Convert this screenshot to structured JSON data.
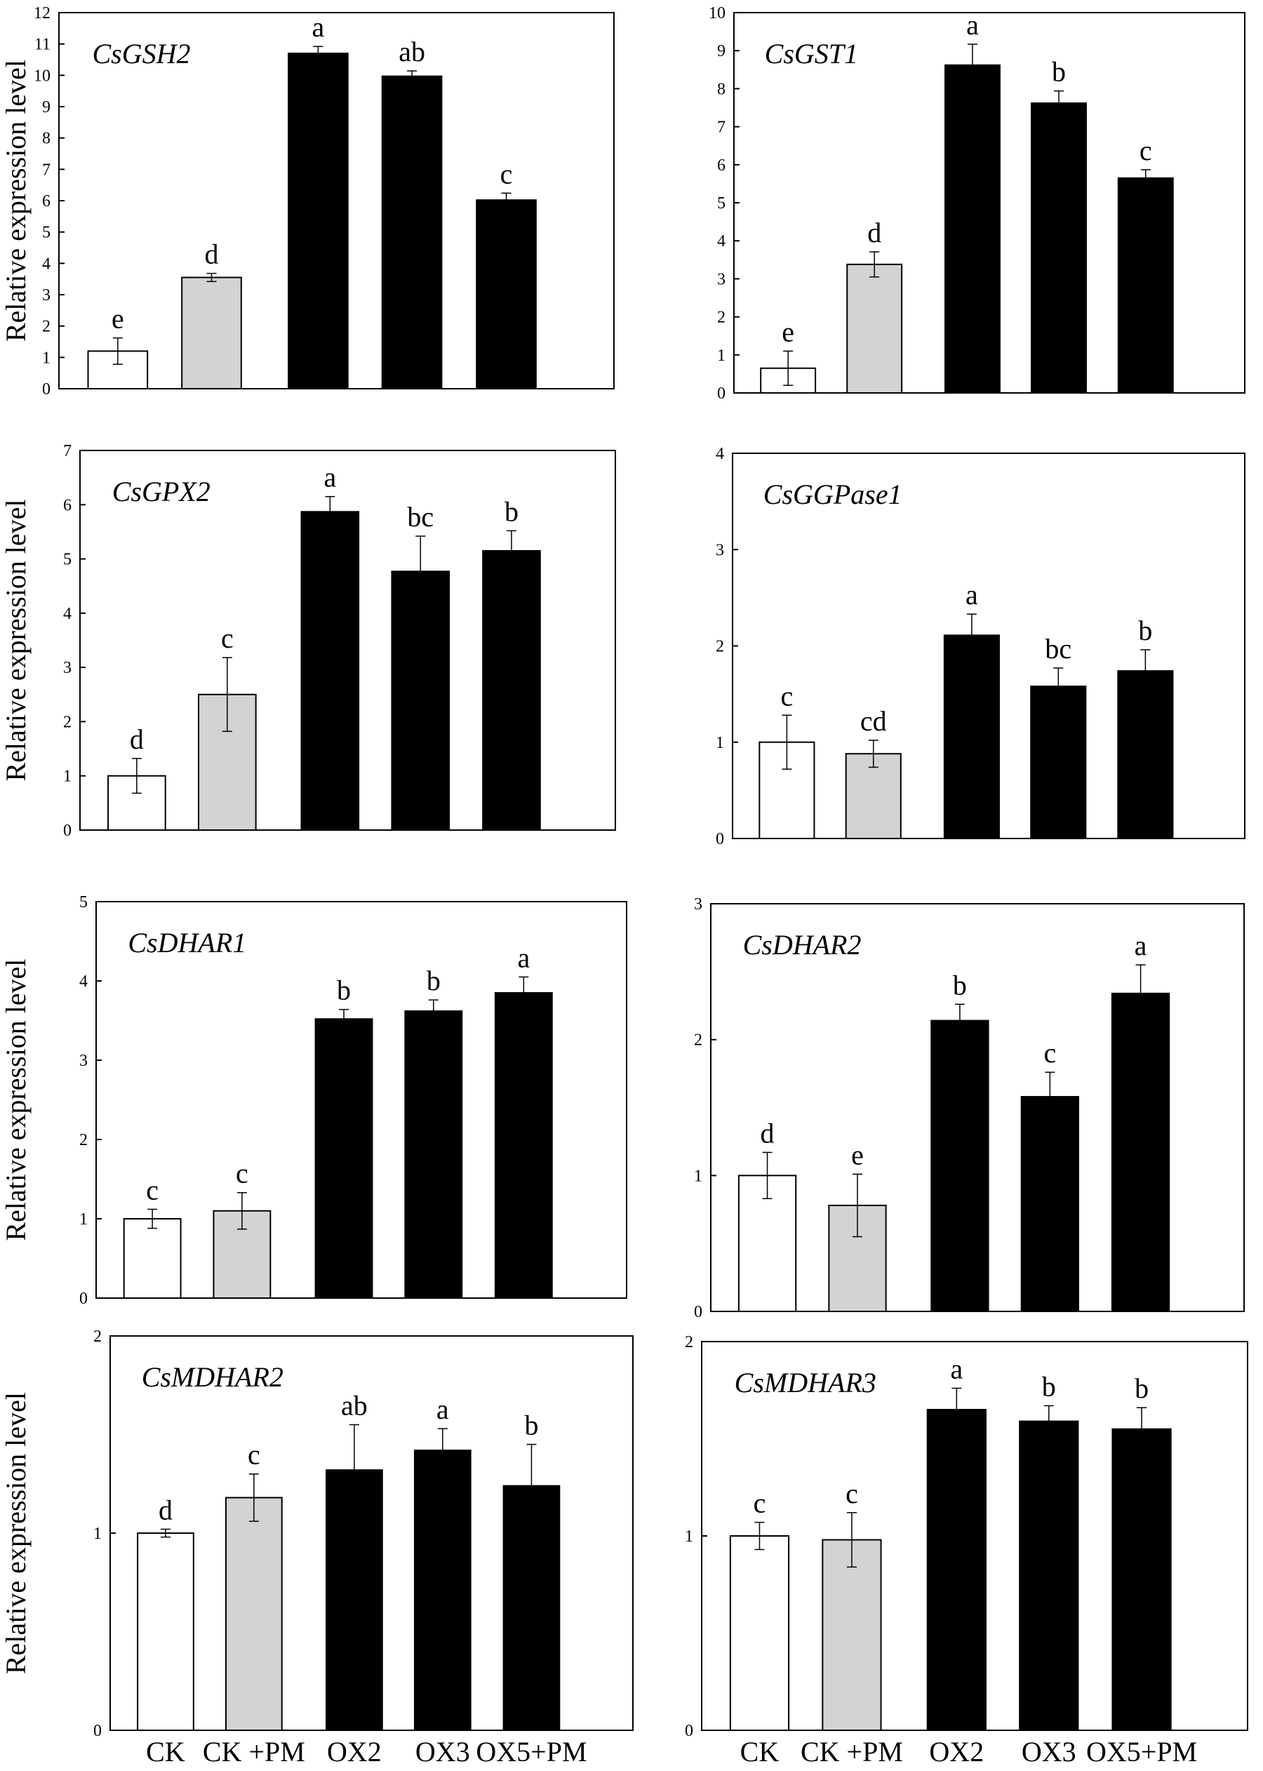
{
  "x_categories": [
    "CK",
    "CK +PM",
    "OX2",
    "OX3",
    "OX5+PM"
  ],
  "colors": {
    "CK": "#ffffff",
    "CK +PM": "#d3d3d3",
    "OX2": "#000000",
    "OX3": "#000000",
    "OX5+PM": "#000000",
    "axis": "#000000"
  },
  "chart_data": [
    {
      "type": "bar",
      "title": "CsGSH2",
      "ylabel": "Relative expression level",
      "xlabel": "",
      "categories": [
        "CK",
        "CK +PM",
        "OX2",
        "OX3",
        "OX5+PM"
      ],
      "values": [
        1.2,
        3.55,
        10.7,
        9.97,
        6.02
      ],
      "errors": [
        0.42,
        0.13,
        0.22,
        0.17,
        0.22
      ],
      "significance": [
        "e",
        "d",
        "a",
        "ab",
        "c"
      ],
      "ylim": [
        0,
        12
      ],
      "yticks": [
        0,
        1,
        2,
        3,
        4,
        5,
        6,
        7,
        8,
        9,
        10,
        11,
        12
      ],
      "ytick_labels": [
        "0",
        "1",
        "2",
        "3",
        "4",
        "5",
        "6",
        "7",
        "8",
        "9",
        "10",
        "11",
        "12"
      ]
    },
    {
      "type": "bar",
      "title": "CsGST1",
      "ylabel": "",
      "xlabel": "",
      "categories": [
        "CK",
        "CK +PM",
        "OX2",
        "OX3",
        "OX5+PM"
      ],
      "values": [
        0.65,
        3.38,
        8.62,
        7.62,
        5.65
      ],
      "errors": [
        0.45,
        0.33,
        0.55,
        0.32,
        0.22
      ],
      "significance": [
        "e",
        "d",
        "a",
        "b",
        "c"
      ],
      "ylim": [
        0,
        10
      ],
      "yticks": [
        0,
        1,
        2,
        3,
        4,
        5,
        6,
        7,
        8,
        9,
        10
      ],
      "ytick_labels": [
        "0",
        "1",
        "2",
        "3",
        "4",
        "5",
        "6",
        "7",
        "8",
        "9",
        "10"
      ]
    },
    {
      "type": "bar",
      "title": "CsGPX2",
      "ylabel": "Relative expression level",
      "xlabel": "",
      "categories": [
        "CK",
        "CK +PM",
        "OX2",
        "OX3",
        "OX5+PM"
      ],
      "values": [
        1.0,
        2.5,
        5.87,
        4.77,
        5.15
      ],
      "errors": [
        0.32,
        0.68,
        0.28,
        0.65,
        0.37
      ],
      "significance": [
        "d",
        "c",
        "a",
        "bc",
        "b"
      ],
      "ylim": [
        0,
        7
      ],
      "yticks": [
        0,
        1,
        2,
        3,
        4,
        5,
        6,
        7
      ],
      "ytick_labels": [
        "0",
        "1",
        "2",
        "3",
        "4",
        "5",
        "6",
        "7"
      ]
    },
    {
      "type": "bar",
      "title": "CsGGPase1",
      "ylabel": "",
      "xlabel": "",
      "categories": [
        "CK",
        "CK +PM",
        "OX2",
        "OX3",
        "OX5+PM"
      ],
      "values": [
        1.0,
        0.88,
        2.11,
        1.58,
        1.74
      ],
      "errors": [
        0.28,
        0.14,
        0.22,
        0.19,
        0.22
      ],
      "significance": [
        "c",
        "cd",
        "a",
        "bc",
        "b"
      ],
      "ylim": [
        0,
        4
      ],
      "yticks": [
        0,
        1,
        2,
        3,
        4
      ],
      "ytick_labels": [
        "0",
        "1",
        "2",
        "3",
        "4"
      ]
    },
    {
      "type": "bar",
      "title": "CsDHAR1",
      "ylabel": "Relative expression level",
      "xlabel": "",
      "categories": [
        "CK",
        "CK +PM",
        "OX2",
        "OX3",
        "OX5+PM"
      ],
      "values": [
        1.0,
        1.1,
        3.52,
        3.62,
        3.85
      ],
      "errors": [
        0.12,
        0.23,
        0.12,
        0.14,
        0.2
      ],
      "significance": [
        "c",
        "c",
        "b",
        "b",
        "a"
      ],
      "ylim": [
        0,
        5
      ],
      "yticks": [
        0,
        1,
        2,
        3,
        4,
        5
      ],
      "ytick_labels": [
        "0",
        "1",
        "2",
        "3",
        "4",
        "5"
      ]
    },
    {
      "type": "bar",
      "title": "CsDHAR2",
      "ylabel": "",
      "xlabel": "",
      "categories": [
        "CK",
        "CK +PM",
        "OX2",
        "OX3",
        "OX5+PM"
      ],
      "values": [
        1.0,
        0.78,
        2.14,
        1.58,
        2.34
      ],
      "errors": [
        0.17,
        0.23,
        0.12,
        0.18,
        0.21
      ],
      "significance": [
        "d",
        "e",
        "b",
        "c",
        "a"
      ],
      "ylim": [
        0,
        3
      ],
      "yticks": [
        0,
        1,
        2,
        3
      ],
      "ytick_labels": [
        "0",
        "1",
        "2",
        "3"
      ]
    },
    {
      "type": "bar",
      "title": "CsMDHAR2",
      "ylabel": "Relative expression level",
      "xlabel": "",
      "categories": [
        "CK",
        "CK +PM",
        "OX2",
        "OX3",
        "OX5+PM"
      ],
      "values": [
        1.0,
        1.18,
        1.32,
        1.42,
        1.24
      ],
      "errors": [
        0.02,
        0.12,
        0.23,
        0.11,
        0.21
      ],
      "significance": [
        "d",
        "c",
        "ab",
        "a",
        "b"
      ],
      "ylim": [
        0,
        2
      ],
      "yticks": [
        0,
        1,
        2
      ],
      "ytick_labels": [
        "0",
        "1",
        "2"
      ]
    },
    {
      "type": "bar",
      "title": "CsMDHAR3",
      "ylabel": "",
      "xlabel": "",
      "categories": [
        "CK",
        "CK +PM",
        "OX2",
        "OX3",
        "OX5+PM"
      ],
      "values": [
        1.0,
        0.98,
        1.65,
        1.59,
        1.55
      ],
      "errors": [
        0.07,
        0.14,
        0.11,
        0.08,
        0.11
      ],
      "significance": [
        "c",
        "c",
        "a",
        "b",
        "b"
      ],
      "ylim": [
        0,
        2
      ],
      "yticks": [
        0,
        1,
        2
      ],
      "ytick_labels": [
        "0",
        "1",
        "2"
      ]
    }
  ]
}
